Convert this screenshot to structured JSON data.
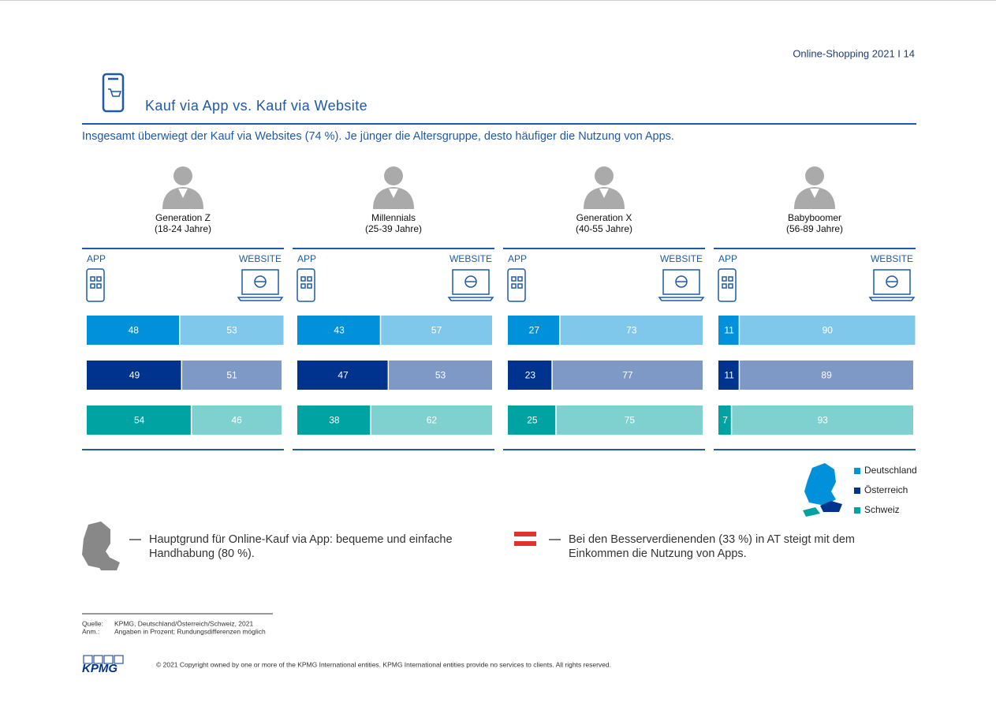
{
  "header": {
    "page": "Online-Shopping 2021 I 14",
    "title": "Kauf via App vs. Kauf via Website",
    "subtitle": "Insgesamt überwiegt der Kauf via Websites (74 %). Je jünger die Altersgruppe, desto häufiger die Nutzung von Apps."
  },
  "legend": [
    {
      "name": "Deutschland",
      "color": "#0091da"
    },
    {
      "name": "Österreich",
      "color": "#00338d"
    },
    {
      "name": "Schweiz",
      "color": "#00a3a1"
    }
  ],
  "chart_data": [
    {
      "type": "bar",
      "stacked": true,
      "title": "Generation Z",
      "subtitle": "(18-24 Jahre)",
      "xlim": [
        0,
        100
      ],
      "series": [
        {
          "name": "APP",
          "colors": [
            "#0091da",
            "#00338d",
            "#00a3a1"
          ],
          "values": [
            48,
            49,
            54
          ]
        },
        {
          "name": "WEBSITE",
          "colors": [
            "#7fc8ec",
            "#7f99c6",
            "#7fd1d0"
          ],
          "values": [
            53,
            51,
            46
          ]
        }
      ]
    },
    {
      "type": "bar",
      "stacked": true,
      "title": "Millennials",
      "subtitle": "(25-39 Jahre)",
      "xlim": [
        0,
        100
      ],
      "series": [
        {
          "name": "APP",
          "colors": [
            "#0091da",
            "#00338d",
            "#00a3a1"
          ],
          "values": [
            43,
            47,
            38
          ]
        },
        {
          "name": "WEBSITE",
          "colors": [
            "#7fc8ec",
            "#7f99c6",
            "#7fd1d0"
          ],
          "values": [
            57,
            53,
            62
          ]
        }
      ]
    },
    {
      "type": "bar",
      "stacked": true,
      "title": "Generation X",
      "subtitle": "(40-55 Jahre)",
      "xlim": [
        0,
        100
      ],
      "series": [
        {
          "name": "APP",
          "colors": [
            "#0091da",
            "#00338d",
            "#00a3a1"
          ],
          "values": [
            27,
            23,
            25
          ]
        },
        {
          "name": "WEBSITE",
          "colors": [
            "#7fc8ec",
            "#7f99c6",
            "#7fd1d0"
          ],
          "values": [
            73,
            77,
            75
          ]
        }
      ]
    },
    {
      "type": "bar",
      "stacked": true,
      "title": "Babyboomer",
      "subtitle": "(56-89 Jahre)",
      "xlim": [
        0,
        100
      ],
      "series": [
        {
          "name": "APP",
          "colors": [
            "#0091da",
            "#00338d",
            "#00a3a1"
          ],
          "values": [
            11,
            11,
            7
          ]
        },
        {
          "name": "WEBSITE",
          "colors": [
            "#7fc8ec",
            "#7f99c6",
            "#7fd1d0"
          ],
          "values": [
            90,
            89,
            93
          ]
        }
      ]
    }
  ],
  "callouts": [
    "Hauptgrund für Online-Kauf via App: bequeme und einfache Handhabung (80 %).",
    "Bei den Besserverdienenden (33 %) in AT steigt mit dem Einkommen die Nutzung von Apps."
  ],
  "notes": {
    "source_label": "Quelle:",
    "source": "KPMG, Deutschland/Österreich/Schweiz, 2021",
    "note_label": "Anm.:",
    "note": "Angaben in Prozent; Rundungsdifferenzen möglich"
  },
  "footer": {
    "logo": "KPMG",
    "copyright": "© 2021 Copyright owned by one or more of the KPMG International entities. KPMG International entities provide no services to clients. All rights reserved."
  }
}
